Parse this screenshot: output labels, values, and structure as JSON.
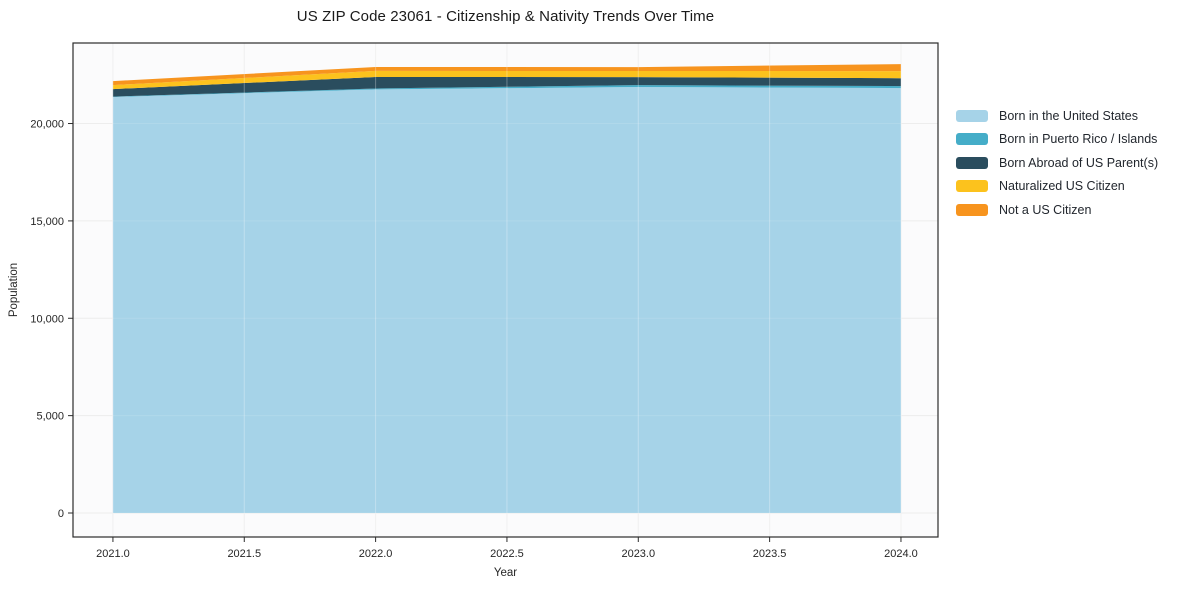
{
  "chart_data": {
    "type": "area",
    "stacked": true,
    "title": "US ZIP Code 23061 - Citizenship & Nativity Trends Over Time",
    "xlabel": "Year",
    "ylabel": "Population",
    "x": [
      2021,
      2022,
      2023,
      2024
    ],
    "series": [
      {
        "name": "Born in the United States",
        "color": "#a6d3e8",
        "values": [
          21360,
          21750,
          21875,
          21820
        ]
      },
      {
        "name": "Born in Puerto Rico / Islands",
        "color": "#45adc8",
        "values": [
          25,
          50,
          100,
          100
        ]
      },
      {
        "name": "Born Abroad of US Parent(s)",
        "color": "#2a4d5e",
        "values": [
          385,
          590,
          410,
          410
        ]
      },
      {
        "name": "Naturalized US Citizen",
        "color": "#fcc21d",
        "values": [
          205,
          310,
          310,
          360
        ]
      },
      {
        "name": "Not a US Citizen",
        "color": "#f7941e",
        "values": [
          205,
          205,
          205,
          360
        ]
      }
    ],
    "totals": [
      22180,
      22905,
      22900,
      23050
    ],
    "xticks": {
      "values": [
        2021.0,
        2021.5,
        2022.0,
        2022.5,
        2023.0,
        2023.5,
        2024.0
      ],
      "labels": [
        "2021.0",
        "2021.5",
        "2022.0",
        "2022.5",
        "2023.0",
        "2023.5",
        "2024.0"
      ]
    },
    "yticks": {
      "values": [
        0,
        5000,
        10000,
        15000,
        20000
      ],
      "labels": [
        "0",
        "5,000",
        "10,000",
        "15,000",
        "20,000"
      ]
    },
    "xlim": [
      2020.848,
      2024.141
    ],
    "ylim": [
      -1232,
      24135
    ],
    "grid": true,
    "legend_position": "right",
    "colors": {
      "spine": "#2b2b2b",
      "tick_text": "#262626",
      "grid_base": "#ebebeb",
      "plot_background": "#fbfbfc",
      "title_text": "#1a1a1a"
    }
  }
}
